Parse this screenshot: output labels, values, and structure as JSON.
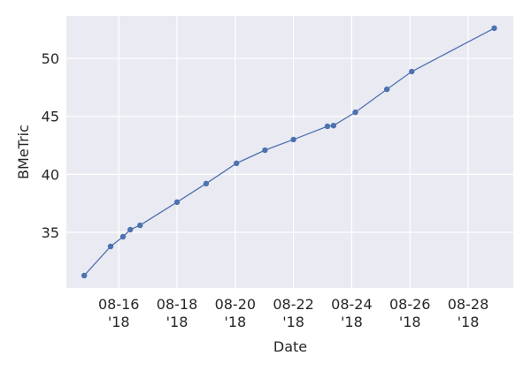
{
  "chart_data": {
    "type": "line",
    "x_label": "Date",
    "y_label": "BMeTric",
    "x": [
      "2018-08-14T19:30",
      "2018-08-15T17:15",
      "2018-08-16T03:30",
      "2018-08-16T09:30",
      "2018-08-16T17:30",
      "2018-08-18T00:00",
      "2018-08-19T00:00",
      "2018-08-20T01:00",
      "2018-08-21T00:30",
      "2018-08-22T00:00",
      "2018-08-23T04:00",
      "2018-08-23T09:00",
      "2018-08-24T03:00",
      "2018-08-25T05:00",
      "2018-08-26T01:30",
      "2018-08-28T21:30"
    ],
    "series": [
      {
        "name": "BMeTric",
        "color": "#4c72b0",
        "values": [
          31.27,
          33.78,
          34.62,
          35.23,
          35.6,
          37.6,
          39.2,
          40.95,
          42.08,
          43.0,
          44.14,
          44.2,
          45.35,
          47.33,
          48.86,
          52.6
        ]
      }
    ],
    "xlim": [
      "2018-08-14T04:48",
      "2018-08-29T13:12"
    ],
    "xticks": [
      {
        "value": "2018-08-16T00:00",
        "label": "08-16\n'18"
      },
      {
        "value": "2018-08-18T00:00",
        "label": "08-18\n'18"
      },
      {
        "value": "2018-08-20T00:00",
        "label": "08-20\n'18"
      },
      {
        "value": "2018-08-22T00:00",
        "label": "08-22\n'18"
      },
      {
        "value": "2018-08-24T00:00",
        "label": "08-24\n'18"
      },
      {
        "value": "2018-08-26T00:00",
        "label": "08-26\n'18"
      },
      {
        "value": "2018-08-28T00:00",
        "label": "08-28\n'18"
      }
    ],
    "ylim": [
      30.2,
      53.66
    ],
    "yticks": [
      35,
      40,
      45,
      50
    ],
    "grid": true
  }
}
